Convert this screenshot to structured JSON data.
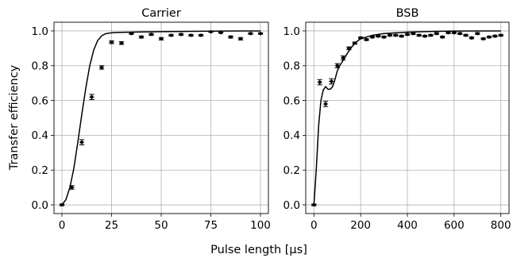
{
  "figure": {
    "ylabel": "Transfer efficiency",
    "xlabel": "Pulse length [μs]"
  },
  "chart_data": [
    {
      "type": "scatter",
      "title": "Carrier",
      "xlabel": "",
      "ylabel": "Transfer efficiency",
      "xlim": [
        -4,
        104
      ],
      "ylim": [
        -0.05,
        1.05
      ],
      "xticks": [
        0,
        25,
        50,
        75,
        100
      ],
      "xtick_labels": [
        "0",
        "25",
        "50",
        "75",
        "100"
      ],
      "yticks": [
        0.0,
        0.2,
        0.4,
        0.6,
        0.8,
        1.0
      ],
      "ytick_labels": [
        "0.0",
        "0.2",
        "0.4",
        "0.6",
        "0.8",
        "1.0"
      ],
      "grid": true,
      "series": [
        {
          "kind": "points",
          "color": "#000000",
          "x": [
            0,
            5,
            10,
            15,
            20,
            25,
            30,
            35,
            40,
            45,
            50,
            55,
            60,
            65,
            70,
            75,
            80,
            85,
            90,
            95,
            100
          ],
          "y": [
            0.0,
            0.1,
            0.36,
            0.62,
            0.79,
            0.935,
            0.93,
            0.985,
            0.965,
            0.98,
            0.955,
            0.975,
            0.98,
            0.975,
            0.975,
            0.995,
            0.99,
            0.965,
            0.955,
            0.985,
            0.985
          ],
          "err": [
            0.005,
            0.01,
            0.015,
            0.015,
            0.01,
            0.008,
            0.008,
            0.004,
            0.006,
            0.005,
            0.007,
            0.005,
            0.005,
            0.005,
            0.005,
            0.003,
            0.003,
            0.006,
            0.007,
            0.004,
            0.004
          ]
        },
        {
          "kind": "line",
          "color": "#000000",
          "x": [
            0,
            2,
            4,
            6,
            8,
            10,
            12,
            14,
            16,
            18,
            20,
            22,
            24,
            26,
            28,
            30,
            40,
            50,
            60,
            70,
            80,
            90,
            100
          ],
          "y": [
            0.0,
            0.03,
            0.1,
            0.21,
            0.36,
            0.52,
            0.67,
            0.8,
            0.89,
            0.945,
            0.972,
            0.984,
            0.988,
            0.99,
            0.991,
            0.992,
            0.994,
            0.996,
            0.997,
            0.998,
            0.999,
            1.0,
            1.0
          ]
        }
      ]
    },
    {
      "type": "scatter",
      "title": "BSB",
      "xlabel": "",
      "ylabel": "",
      "xlim": [
        -35,
        835
      ],
      "ylim": [
        -0.05,
        1.05
      ],
      "xticks": [
        0,
        200,
        400,
        600,
        800
      ],
      "xtick_labels": [
        "0",
        "200",
        "400",
        "600",
        "800"
      ],
      "yticks": [
        0.0,
        0.2,
        0.4,
        0.6,
        0.8,
        1.0
      ],
      "ytick_labels": [
        "0.0",
        "0.2",
        "0.4",
        "0.6",
        "0.8",
        "1.0"
      ],
      "grid": true,
      "series": [
        {
          "kind": "points",
          "color": "#000000",
          "x": [
            0,
            25,
            50,
            75,
            100,
            125,
            150,
            175,
            200,
            225,
            250,
            275,
            300,
            325,
            350,
            375,
            400,
            425,
            450,
            475,
            500,
            525,
            550,
            575,
            600,
            625,
            650,
            675,
            700,
            725,
            750,
            775,
            800
          ],
          "y": [
            0.0,
            0.705,
            0.58,
            0.71,
            0.8,
            0.845,
            0.9,
            0.93,
            0.96,
            0.95,
            0.965,
            0.97,
            0.965,
            0.975,
            0.975,
            0.97,
            0.98,
            0.985,
            0.975,
            0.97,
            0.975,
            0.985,
            0.965,
            0.99,
            0.99,
            0.985,
            0.975,
            0.96,
            0.985,
            0.955,
            0.965,
            0.97,
            0.975
          ],
          "err": [
            0.005,
            0.015,
            0.015,
            0.015,
            0.012,
            0.012,
            0.008,
            0.006,
            0.005,
            0.005,
            0.005,
            0.005,
            0.005,
            0.005,
            0.005,
            0.005,
            0.005,
            0.005,
            0.005,
            0.005,
            0.005,
            0.005,
            0.005,
            0.005,
            0.005,
            0.005,
            0.005,
            0.005,
            0.005,
            0.005,
            0.005,
            0.005,
            0.005
          ]
        },
        {
          "kind": "line",
          "color": "#000000",
          "x": [
            0,
            10,
            20,
            30,
            40,
            50,
            60,
            70,
            80,
            90,
            100,
            110,
            120,
            130,
            140,
            150,
            160,
            180,
            200,
            250,
            300,
            400,
            500,
            600,
            700,
            800
          ],
          "y": [
            0.0,
            0.2,
            0.45,
            0.6,
            0.66,
            0.68,
            0.665,
            0.665,
            0.68,
            0.72,
            0.77,
            0.8,
            0.82,
            0.84,
            0.865,
            0.885,
            0.905,
            0.935,
            0.955,
            0.975,
            0.985,
            0.993,
            0.997,
            0.999,
            1.0,
            1.0
          ]
        }
      ]
    }
  ]
}
